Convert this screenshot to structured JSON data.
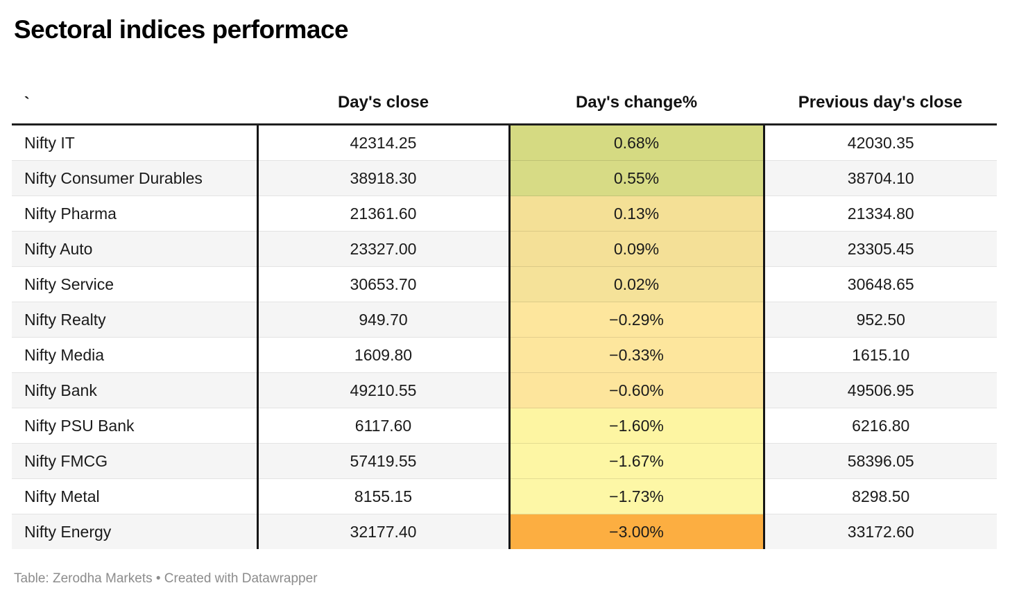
{
  "title": "Sectoral indices performace",
  "table": {
    "columns": [
      {
        "label": "`",
        "align": "left"
      },
      {
        "label": "Day's close",
        "align": "center"
      },
      {
        "label": "Day's change%",
        "align": "center"
      },
      {
        "label": "Previous day's close",
        "align": "center"
      }
    ],
    "rows": [
      {
        "name": "Nifty IT",
        "close": "42314.25",
        "change": "0.68%",
        "prev": "42030.35",
        "change_bg": "#d5da82"
      },
      {
        "name": "Nifty Consumer Durables",
        "close": "38918.30",
        "change": "0.55%",
        "prev": "38704.10",
        "change_bg": "#d7db85"
      },
      {
        "name": "Nifty Pharma",
        "close": "21361.60",
        "change": "0.13%",
        "prev": "21334.80",
        "change_bg": "#f4e096"
      },
      {
        "name": "Nifty Auto",
        "close": "23327.00",
        "change": "0.09%",
        "prev": "23305.45",
        "change_bg": "#f4e097"
      },
      {
        "name": "Nifty Service",
        "close": "30653.70",
        "change": "0.02%",
        "prev": "30648.65",
        "change_bg": "#f5e299"
      },
      {
        "name": "Nifty Realty",
        "close": "949.70",
        "change": "−0.29%",
        "prev": "952.50",
        "change_bg": "#fde69d"
      },
      {
        "name": "Nifty Media",
        "close": "1609.80",
        "change": "−0.33%",
        "prev": "1615.10",
        "change_bg": "#fde69d"
      },
      {
        "name": "Nifty Bank",
        "close": "49210.55",
        "change": "−0.60%",
        "prev": "49506.95",
        "change_bg": "#fde59c"
      },
      {
        "name": "Nifty PSU Bank",
        "close": "6117.60",
        "change": "−1.60%",
        "prev": "6216.80",
        "change_bg": "#fdf5a2"
      },
      {
        "name": "Nifty FMCG",
        "close": "57419.55",
        "change": "−1.67%",
        "prev": "58396.05",
        "change_bg": "#fdf6a4"
      },
      {
        "name": "Nifty Metal",
        "close": "8155.15",
        "change": "−1.73%",
        "prev": "8298.50",
        "change_bg": "#fdf7a6"
      },
      {
        "name": "Nifty Energy",
        "close": "32177.40",
        "change": "−3.00%",
        "prev": "33172.60",
        "change_bg": "#fcae41"
      }
    ]
  },
  "footer": "Table: Zerodha Markets • Created with Datawrapper",
  "colors": {
    "row_stripe": "#f5f5f5",
    "row_separator": "#e3e3e3",
    "header_rule": "#1e1e1e",
    "column_divider": "#161616",
    "footer_text": "#8c8c8c",
    "positive_high": "#d5da82",
    "negative_low": "#fcae41"
  },
  "chart_data": {
    "type": "table",
    "title": "Sectoral indices performace",
    "columns": [
      "",
      "Day's close",
      "Day's change%",
      "Previous day's close"
    ],
    "categories": [
      "Nifty IT",
      "Nifty Consumer Durables",
      "Nifty Pharma",
      "Nifty Auto",
      "Nifty Service",
      "Nifty Realty",
      "Nifty Media",
      "Nifty Bank",
      "Nifty PSU Bank",
      "Nifty FMCG",
      "Nifty Metal",
      "Nifty Energy"
    ],
    "series": [
      {
        "name": "Day's close",
        "values": [
          42314.25,
          38918.3,
          21361.6,
          23327.0,
          30653.7,
          949.7,
          1609.8,
          49210.55,
          6117.6,
          57419.55,
          8155.15,
          32177.4
        ]
      },
      {
        "name": "Day's change%",
        "values": [
          0.68,
          0.55,
          0.13,
          0.09,
          0.02,
          -0.29,
          -0.33,
          -0.6,
          -1.6,
          -1.67,
          -1.73,
          -3.0
        ]
      },
      {
        "name": "Previous day's close",
        "values": [
          42030.35,
          38704.1,
          21334.8,
          23305.45,
          30648.65,
          952.5,
          1615.1,
          49506.95,
          6216.8,
          58396.05,
          8298.5,
          33172.6
        ]
      }
    ],
    "layout_hints": {
      "heatmap_column": "Day's change%",
      "heatmap_scale": "green (positive) → yellow → orange (most negative)",
      "row_striping": true
    },
    "source": "Table: Zerodha Markets",
    "tool": "Created with Datawrapper"
  }
}
